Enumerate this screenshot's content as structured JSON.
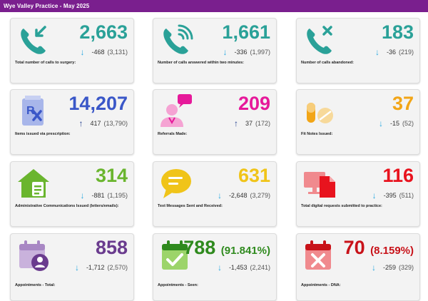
{
  "header": {
    "title": "Wye Valley Practice - May 2025"
  },
  "colors": {
    "teal": "#2aa198",
    "blue": "#3a57c8",
    "magenta": "#e6199a",
    "orange": "#f2a516",
    "green": "#6ab52e",
    "yellow": "#f0c419",
    "red": "#e8131e",
    "purple": "#6a3b8e",
    "dark_green": "#2f8a1e",
    "dark_red": "#c81219",
    "arrow_down": "#29a8e0",
    "arrow_up": "#243f8f"
  },
  "cards": [
    {
      "value": "2,663",
      "pct": "",
      "change": "-468",
      "prev": "(3,131)",
      "direction": "down",
      "label": "Total number of calls to surgery:",
      "icon": "phone-incoming-icon"
    },
    {
      "value": "1,661",
      "pct": "",
      "change": "-336",
      "prev": "(1,997)",
      "direction": "down",
      "label": "Number of calls answered within two minutes:",
      "icon": "phone-ringing-icon"
    },
    {
      "value": "183",
      "pct": "",
      "change": "-36",
      "prev": "(219)",
      "direction": "down",
      "label": "Number of calls abandoned:",
      "icon": "phone-missed-icon"
    },
    {
      "value": "14,207",
      "pct": "",
      "change": "417",
      "prev": "(13,790)",
      "direction": "up",
      "label": "Items issued via prescription:",
      "icon": "prescription-icon"
    },
    {
      "value": "209",
      "pct": "",
      "change": "37",
      "prev": "(172)",
      "direction": "up",
      "label": "Referrals Made:",
      "icon": "doctor-referral-icon"
    },
    {
      "value": "37",
      "pct": "",
      "change": "-15",
      "prev": "(52)",
      "direction": "down",
      "label": "Fit Notes Issued:",
      "icon": "pills-icon"
    },
    {
      "value": "314",
      "pct": "",
      "change": "-881",
      "prev": "(1,195)",
      "direction": "down",
      "label": "Administrative Communications Issued (letters/emails):",
      "icon": "home-document-icon"
    },
    {
      "value": "631",
      "pct": "",
      "change": "-2,648",
      "prev": "(3,279)",
      "direction": "down",
      "label": "Text Messages Sent and Received:",
      "icon": "chat-bubble-icon"
    },
    {
      "value": "116",
      "pct": "",
      "change": "-395",
      "prev": "(511)",
      "direction": "down",
      "label": "Total digital requests submitted to practice:",
      "icon": "digital-request-icon"
    },
    {
      "value": "858",
      "pct": "",
      "change": "-1,712",
      "prev": "(2,570)",
      "direction": "down",
      "label": "Appointments - Total:",
      "icon": "calendar-person-icon"
    },
    {
      "value": "788",
      "pct": "(91.841%)",
      "change": "-1,453",
      "prev": "(2,241)",
      "direction": "down",
      "label": "Appointments - Seen:",
      "icon": "calendar-check-icon"
    },
    {
      "value": "70",
      "pct": "(8.159%)",
      "change": "-259",
      "prev": "(329)",
      "direction": "down",
      "label": "Appointments - DNA:",
      "icon": "calendar-cross-icon"
    }
  ],
  "arrows": {
    "down": "↓",
    "up": "↑"
  }
}
